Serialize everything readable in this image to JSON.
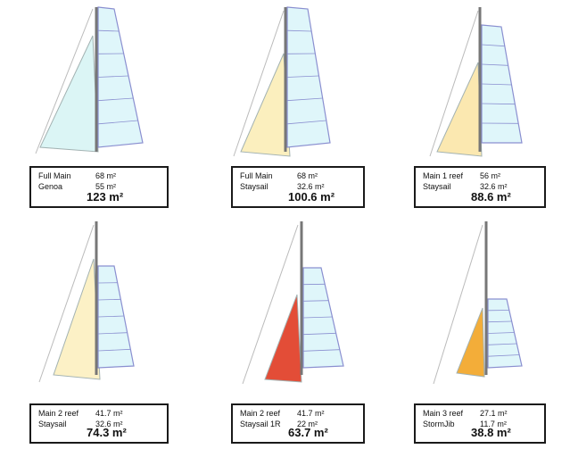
{
  "panels": [
    {
      "rows": [
        {
          "label": "Full Main",
          "area": "68 m²"
        },
        {
          "label": "Genoa",
          "area": "55 m²"
        }
      ],
      "total": "123 m²"
    },
    {
      "rows": [
        {
          "label": "Full Main",
          "area": "68 m²"
        },
        {
          "label": "Staysail",
          "area": "32.6 m²"
        }
      ],
      "total": "100.6 m²"
    },
    {
      "rows": [
        {
          "label": "Main 1 reef",
          "area": "56 m²"
        },
        {
          "label": "Staysail",
          "area": "32.6 m²"
        }
      ],
      "total": "88.6 m²"
    },
    {
      "rows": [
        {
          "label": "Main 2 reef",
          "area": "41.7 m²"
        },
        {
          "label": "Staysail",
          "area": "32.6 m²"
        }
      ],
      "total": "74.3 m²"
    },
    {
      "rows": [
        {
          "label": "Main 2 reef",
          "area": "41.7 m²"
        },
        {
          "label": "Staysail 1R",
          "area": "22 m²"
        }
      ],
      "total": "63.7 m²"
    },
    {
      "rows": [
        {
          "label": "Main 3 reef",
          "area": "27.1 m²"
        },
        {
          "label": "StormJib",
          "area": "11.7 m²"
        }
      ],
      "total": "38.8 m²"
    }
  ]
}
